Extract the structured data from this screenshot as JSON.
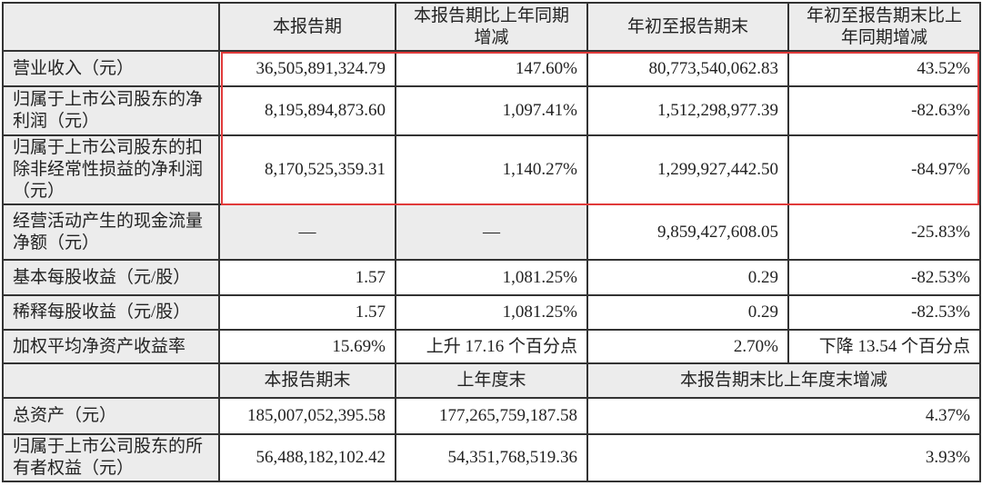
{
  "header": [
    "",
    "本报告期",
    "本报告期比上年同期增减",
    "年初至报告期末",
    "年初至报告期末比上年同期增减"
  ],
  "rows": [
    {
      "label": "营业收入（元）",
      "cells": [
        "36,505,891,324.79",
        "147.60%",
        "80,773,540,062.83",
        "43.52%"
      ]
    },
    {
      "label": "归属于上市公司股东的净利润（元）",
      "cells": [
        "8,195,894,873.60",
        "1,097.41%",
        "1,512,298,977.39",
        "-82.63%"
      ]
    },
    {
      "label": "归属于上市公司股东的扣除非经常性损益的净利润（元）",
      "cells": [
        "8,170,525,359.31",
        "1,140.27%",
        "1,299,927,442.50",
        "-84.97%"
      ]
    },
    {
      "label": "经营活动产生的现金流量净额（元）",
      "cells": [
        "—",
        "—",
        "9,859,427,608.05",
        "-25.83%"
      ]
    },
    {
      "label": "基本每股收益（元/股）",
      "cells": [
        "1.57",
        "1,081.25%",
        "0.29",
        "-82.53%"
      ]
    },
    {
      "label": "稀释每股收益（元/股）",
      "cells": [
        "1.57",
        "1,081.25%",
        "0.29",
        "-82.53%"
      ]
    },
    {
      "label": "加权平均净资产收益率",
      "cells": [
        "15.69%",
        "上升 17.16 个百分点",
        "2.70%",
        "下降 13.54 个百分点"
      ]
    }
  ],
  "header2": [
    "",
    "本报告期末",
    "上年度末",
    "本报告期末比上年度末增减"
  ],
  "rows2": [
    {
      "label": "总资产（元）",
      "cells": [
        "185,007,052,395.58",
        "177,265,759,187.58",
        "4.37%"
      ]
    },
    {
      "label": "归属于上市公司股东的所有者权益（元）",
      "cells": [
        "56,488,182,102.42",
        "54,351,768,519.36",
        "3.93%"
      ]
    }
  ],
  "highlight_color": "#e03a3a"
}
